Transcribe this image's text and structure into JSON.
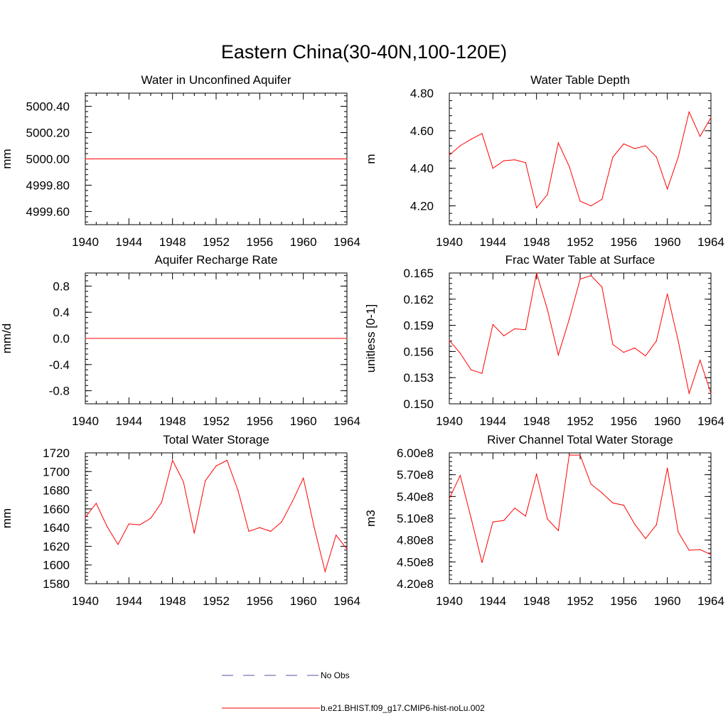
{
  "main_title": "Eastern China(30-40N,100-120E)",
  "legend": {
    "entries": [
      {
        "label": "No Obs",
        "style": "dashed",
        "color": "#5555aa"
      },
      {
        "label": "b.e21.BHIST.f09_g17.CMIP6-hist-noLu.002",
        "style": "solid",
        "color": "#ff0000"
      }
    ]
  },
  "chart_data": [
    {
      "type": "line",
      "title": "Water in Unconfined Aquifer",
      "ylabel": "mm",
      "xlim": [
        1940,
        1964
      ],
      "ylim": [
        4999.5,
        5000.5
      ],
      "x_ticks": [
        1940,
        1944,
        1948,
        1952,
        1956,
        1960,
        1964
      ],
      "x_tick_labels": [
        "1940",
        "1944",
        "1948",
        "1952",
        "1956",
        "1960",
        "1964"
      ],
      "y_ticks": [
        4999.6,
        4999.8,
        5000.0,
        5000.2,
        5000.4
      ],
      "y_tick_labels": [
        "4999.60",
        "4999.80",
        "5000.00",
        "5000.20",
        "5000.40"
      ],
      "series": [
        {
          "name": "b.e21.BHIST.f09_g17.CMIP6-hist-noLu.002",
          "color": "#ff0000",
          "x": [
            1940,
            1964
          ],
          "values": [
            5000.0,
            5000.0
          ]
        }
      ]
    },
    {
      "type": "line",
      "title": "Water Table Depth",
      "ylabel": "m",
      "xlim": [
        1940,
        1964
      ],
      "ylim": [
        4.1,
        4.8
      ],
      "x_ticks": [
        1940,
        1944,
        1948,
        1952,
        1956,
        1960,
        1964
      ],
      "x_tick_labels": [
        "1940",
        "1944",
        "1948",
        "1952",
        "1956",
        "1960",
        "1964"
      ],
      "y_ticks": [
        4.2,
        4.4,
        4.6,
        4.8
      ],
      "y_tick_labels": [
        "4.20",
        "4.40",
        "4.60",
        "4.80"
      ],
      "series": [
        {
          "name": "b.e21.BHIST.f09_g17.CMIP6-hist-noLu.002",
          "color": "#ff0000",
          "x": [
            1940,
            1941,
            1942,
            1943,
            1944,
            1945,
            1946,
            1947,
            1948,
            1949,
            1950,
            1951,
            1952,
            1953,
            1954,
            1955,
            1956,
            1957,
            1958,
            1959,
            1960,
            1961,
            1962,
            1963,
            1964
          ],
          "values": [
            4.47,
            4.52,
            4.555,
            4.585,
            4.4,
            4.44,
            4.445,
            4.43,
            4.19,
            4.26,
            4.535,
            4.41,
            4.225,
            4.2,
            4.235,
            4.46,
            4.53,
            4.505,
            4.52,
            4.46,
            4.29,
            4.46,
            4.7,
            4.57,
            4.67
          ]
        }
      ]
    },
    {
      "type": "line",
      "title": "Aquifer Recharge Rate",
      "ylabel": "mm/d",
      "xlim": [
        1940,
        1964
      ],
      "ylim": [
        -1.0,
        1.0
      ],
      "x_ticks": [
        1940,
        1944,
        1948,
        1952,
        1956,
        1960,
        1964
      ],
      "x_tick_labels": [
        "1940",
        "1944",
        "1948",
        "1952",
        "1956",
        "1960",
        "1964"
      ],
      "y_ticks": [
        -0.8,
        -0.4,
        0.0,
        0.4,
        0.8
      ],
      "y_tick_labels": [
        "-0.8",
        "-0.4",
        "0.0",
        "0.4",
        "0.8"
      ],
      "series": [
        {
          "name": "b.e21.BHIST.f09_g17.CMIP6-hist-noLu.002",
          "color": "#ff0000",
          "x": [
            1940,
            1964
          ],
          "values": [
            0.0,
            0.0
          ]
        }
      ]
    },
    {
      "type": "line",
      "title": "Frac Water Table at Surface",
      "ylabel": "unitless [0-1]",
      "xlim": [
        1940,
        1964
      ],
      "ylim": [
        0.15,
        0.165
      ],
      "x_ticks": [
        1940,
        1944,
        1948,
        1952,
        1956,
        1960,
        1964
      ],
      "x_tick_labels": [
        "1940",
        "1944",
        "1948",
        "1952",
        "1956",
        "1960",
        "1964"
      ],
      "y_ticks": [
        0.15,
        0.153,
        0.156,
        0.159,
        0.162,
        0.165
      ],
      "y_tick_labels": [
        "0.150",
        "0.153",
        "0.156",
        "0.159",
        "0.162",
        "0.165"
      ],
      "series": [
        {
          "name": "b.e21.BHIST.f09_g17.CMIP6-hist-noLu.002",
          "color": "#ff0000",
          "x": [
            1940,
            1941,
            1942,
            1943,
            1944,
            1945,
            1946,
            1947,
            1948,
            1949,
            1950,
            1951,
            1952,
            1953,
            1954,
            1955,
            1956,
            1957,
            1958,
            1959,
            1960,
            1961,
            1962,
            1963,
            1964
          ],
          "values": [
            0.1573,
            0.1558,
            0.1539,
            0.1535,
            0.1591,
            0.1578,
            0.1586,
            0.1585,
            0.165,
            0.1608,
            0.1556,
            0.1597,
            0.1643,
            0.1647,
            0.1634,
            0.1568,
            0.1559,
            0.1564,
            0.1555,
            0.1572,
            0.1626,
            0.1572,
            0.1512,
            0.155,
            0.1512
          ]
        }
      ]
    },
    {
      "type": "line",
      "title": "Total Water Storage",
      "ylabel": "mm",
      "xlim": [
        1940,
        1964
      ],
      "ylim": [
        1580,
        1720
      ],
      "x_ticks": [
        1940,
        1944,
        1948,
        1952,
        1956,
        1960,
        1964
      ],
      "x_tick_labels": [
        "1940",
        "1944",
        "1948",
        "1952",
        "1956",
        "1960",
        "1964"
      ],
      "y_ticks": [
        1580,
        1600,
        1620,
        1640,
        1660,
        1680,
        1700,
        1720
      ],
      "y_tick_labels": [
        "1580",
        "1600",
        "1620",
        "1640",
        "1660",
        "1680",
        "1700",
        "1720"
      ],
      "series": [
        {
          "name": "b.e21.BHIST.f09_g17.CMIP6-hist-noLu.002",
          "color": "#ff0000",
          "x": [
            1940,
            1941,
            1942,
            1943,
            1944,
            1945,
            1946,
            1947,
            1948,
            1949,
            1950,
            1951,
            1952,
            1953,
            1954,
            1955,
            1956,
            1957,
            1958,
            1959,
            1960,
            1961,
            1962,
            1963,
            1964
          ],
          "values": [
            1651,
            1666,
            1641,
            1622,
            1644,
            1643,
            1650,
            1667,
            1712,
            1689,
            1634,
            1690,
            1706,
            1712,
            1680,
            1636,
            1640,
            1636,
            1646,
            1668,
            1693,
            1640,
            1593,
            1632,
            1617
          ]
        }
      ]
    },
    {
      "type": "line",
      "title": "River Channel Total Water Storage",
      "ylabel": "m3",
      "xlim": [
        1940,
        1964
      ],
      "ylim": [
        420000000.0,
        600000000.0
      ],
      "x_ticks": [
        1940,
        1944,
        1948,
        1952,
        1956,
        1960,
        1964
      ],
      "x_tick_labels": [
        "1940",
        "1944",
        "1948",
        "1952",
        "1956",
        "1960",
        "1964"
      ],
      "y_ticks": [
        420000000.0,
        450000000.0,
        480000000.0,
        510000000.0,
        540000000.0,
        570000000.0,
        600000000.0
      ],
      "y_tick_labels": [
        "4.20e8",
        "4.50e8",
        "4.80e8",
        "5.10e8",
        "5.40e8",
        "5.70e8",
        "6.00e8"
      ],
      "series": [
        {
          "name": "b.e21.BHIST.f09_g17.CMIP6-hist-noLu.002",
          "color": "#ff0000",
          "x": [
            1940,
            1941,
            1942,
            1943,
            1944,
            1945,
            1946,
            1947,
            1948,
            1949,
            1950,
            1951,
            1952,
            1953,
            1954,
            1955,
            1956,
            1957,
            1958,
            1959,
            1960,
            1961,
            1962,
            1963,
            1964
          ],
          "values": [
            537000000.0,
            569000000.0,
            510000000.0,
            449000000.0,
            505000000.0,
            507000000.0,
            524000000.0,
            513000000.0,
            571000000.0,
            509000000.0,
            493000000.0,
            597000000.0,
            597000000.0,
            557000000.0,
            545000000.0,
            531000000.0,
            528000000.0,
            502000000.0,
            482000000.0,
            501000000.0,
            579000000.0,
            491000000.0,
            466000000.0,
            467000000.0,
            460000000.0
          ]
        }
      ]
    }
  ]
}
